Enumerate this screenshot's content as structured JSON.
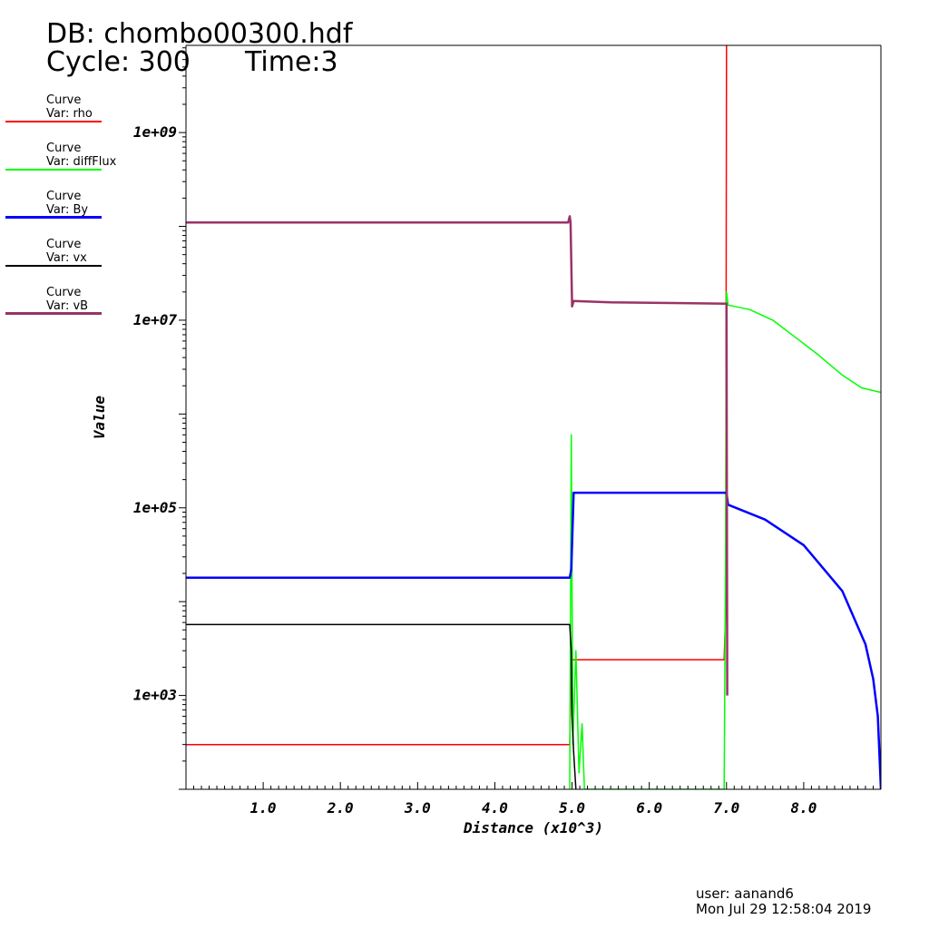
{
  "header": {
    "db": "DB: chombo00300.hdf",
    "cycle": "Cycle: 300",
    "time": "Time:3"
  },
  "legend": [
    {
      "title": "Curve",
      "label": "Var: rho",
      "color": "#ff0000"
    },
    {
      "title": "Curve",
      "label": "Var: diffFlux",
      "color": "#00ff00"
    },
    {
      "title": "Curve",
      "label": "Var: By",
      "color": "#0000ff"
    },
    {
      "title": "Curve",
      "label": "Var: vx",
      "color": "#000000"
    },
    {
      "title": "Curve",
      "label": "Var: vB",
      "color": "#993366"
    }
  ],
  "footer": {
    "user": "user: aanand6",
    "date": "Mon Jul 29 12:58:04 2019"
  },
  "chart_data": {
    "type": "line",
    "xlabel": "Distance (x10^3)",
    "ylabel": "Value",
    "xlim": [
      0,
      9.0
    ],
    "ylim": [
      100,
      8500000000.0
    ],
    "yscale": "log",
    "x_ticks": [
      1.0,
      2.0,
      3.0,
      4.0,
      5.0,
      6.0,
      7.0,
      8.0
    ],
    "x_tick_labels": [
      "1.0",
      "2.0",
      "3.0",
      "4.0",
      "5.0",
      "6.0",
      "7.0",
      "8.0"
    ],
    "y_ticks": [
      1000,
      100000,
      10000000,
      1000000000
    ],
    "y_tick_labels": [
      "1e+03",
      "1e+05",
      "1e+07",
      "1e+09"
    ],
    "grid": false,
    "series": [
      {
        "name": "rho",
        "color": "#ff0000",
        "width": 1.5,
        "points": [
          [
            0,
            300
          ],
          [
            4.97,
            300
          ],
          [
            4.99,
            2400
          ],
          [
            6.97,
            2400
          ],
          [
            6.99,
            8000
          ],
          [
            7.0,
            8500000000.0
          ]
        ]
      },
      {
        "name": "diffFlux",
        "color": "#00ff00",
        "width": 1.5,
        "points": [
          [
            4.97,
            100
          ],
          [
            4.99,
            600000
          ],
          [
            5.01,
            300
          ],
          [
            5.05,
            3000
          ],
          [
            5.09,
            150
          ],
          [
            5.13,
            500
          ],
          [
            5.16,
            100
          ],
          [
            6.97,
            100
          ],
          [
            6.99,
            50000
          ],
          [
            7.0,
            20000000.0
          ],
          [
            7.02,
            14500000.0
          ],
          [
            7.3,
            13000000.0
          ],
          [
            7.6,
            10000000.0
          ],
          [
            7.9,
            6500000.0
          ],
          [
            8.2,
            4200000.0
          ],
          [
            8.5,
            2600000.0
          ],
          [
            8.75,
            1900000.0
          ],
          [
            9.0,
            1700000.0
          ]
        ]
      },
      {
        "name": "By",
        "color": "#0000ff",
        "width": 2.5,
        "points": [
          [
            0,
            18000
          ],
          [
            4.97,
            18000
          ],
          [
            4.99,
            22000
          ],
          [
            5.02,
            145000
          ],
          [
            7.0,
            145000
          ],
          [
            7.02,
            108000
          ],
          [
            7.5,
            75000
          ],
          [
            8.0,
            40000
          ],
          [
            8.5,
            13000
          ],
          [
            8.8,
            3500
          ],
          [
            8.9,
            1500
          ],
          [
            8.96,
            600
          ],
          [
            9.0,
            100
          ]
        ]
      },
      {
        "name": "vx",
        "color": "#000000",
        "width": 1.5,
        "points": [
          [
            0,
            5700
          ],
          [
            4.97,
            5700
          ],
          [
            4.99,
            3000
          ],
          [
            5.0,
            600
          ],
          [
            5.02,
            250
          ],
          [
            5.05,
            100
          ]
        ]
      },
      {
        "name": "vB",
        "color": "#993366",
        "width": 2.5,
        "points": [
          [
            0,
            110000000.0
          ],
          [
            4.95,
            110000000.0
          ],
          [
            4.97,
            128000000.0
          ],
          [
            4.98,
            110000000.0
          ],
          [
            5.0,
            14000000.0
          ],
          [
            5.02,
            16000000.0
          ],
          [
            5.5,
            15500000.0
          ],
          [
            7.0,
            15000000.0
          ],
          [
            7.01,
            1000
          ]
        ]
      }
    ]
  }
}
